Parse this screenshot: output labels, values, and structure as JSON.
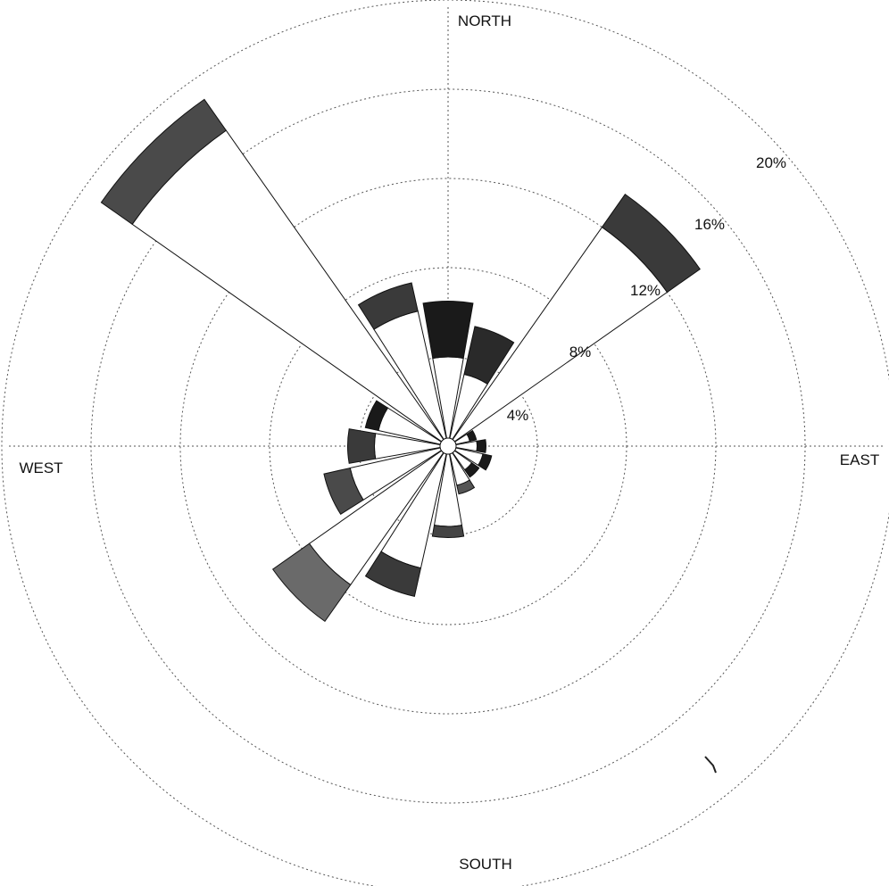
{
  "chart_data": {
    "type": "wind_rose",
    "directions_labels": {
      "north": "NORTH",
      "east": "EAST",
      "south": "SOUTH",
      "west": "WEST"
    },
    "ring_labels": [
      "4%",
      "8%",
      "12%",
      "16%",
      "20%"
    ],
    "rmax_percent": 20,
    "sector_width_deg": 22.5,
    "sectors": [
      {
        "direction_deg": 0,
        "inner": 4.0,
        "outer": 6.5,
        "tip_color": "#1a1a1a"
      },
      {
        "direction_deg": 22.5,
        "inner": 3.3,
        "outer": 5.5,
        "tip_color": "#2a2a2a"
      },
      {
        "direction_deg": 45,
        "inner": 12.0,
        "outer": 13.8,
        "tip_color": "#3a3a3a"
      },
      {
        "direction_deg": 67.5,
        "inner": 1.0,
        "outer": 1.3,
        "tip_color": "#1a1a1a"
      },
      {
        "direction_deg": 90,
        "inner": 1.3,
        "outer": 1.7,
        "tip_color": "#1a1a1a"
      },
      {
        "direction_deg": 112.5,
        "inner": 1.6,
        "outer": 2.0,
        "tip_color": "#1a1a1a"
      },
      {
        "direction_deg": 135,
        "inner": 1.3,
        "outer": 1.7,
        "tip_color": "#1a1a1a"
      },
      {
        "direction_deg": 157.5,
        "inner": 1.8,
        "outer": 2.2,
        "tip_color": "#555555"
      },
      {
        "direction_deg": 180,
        "inner": 3.6,
        "outer": 4.1,
        "tip_color": "#444444"
      },
      {
        "direction_deg": 202.5,
        "inner": 5.6,
        "outer": 6.9,
        "tip_color": "#3a3a3a"
      },
      {
        "direction_deg": 225,
        "inner": 7.6,
        "outer": 9.6,
        "tip_color": "#6a6a6a"
      },
      {
        "direction_deg": 247.5,
        "inner": 4.5,
        "outer": 5.7,
        "tip_color": "#4a4a4a"
      },
      {
        "direction_deg": 270,
        "inner": 3.3,
        "outer": 4.5,
        "tip_color": "#3a3a3a"
      },
      {
        "direction_deg": 292.5,
        "inner": 3.2,
        "outer": 3.8,
        "tip_color": "#1a1a1a"
      },
      {
        "direction_deg": 315,
        "inner": 17.3,
        "outer": 19.0,
        "tip_color": "#4a4a4a"
      },
      {
        "direction_deg": 337.5,
        "inner": 6.2,
        "outer": 7.5,
        "tip_color": "#3a3a3a"
      }
    ]
  }
}
